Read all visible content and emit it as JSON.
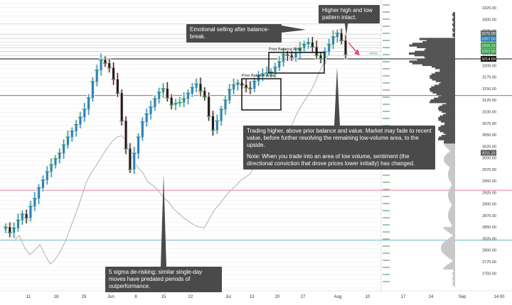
{
  "chart_data": {
    "type": "candlestick",
    "title": "",
    "xlabel": "",
    "ylabel": "",
    "ylim": [
      2712,
      3342
    ],
    "grid": true,
    "x_ticks": [
      "11",
      "18",
      "25",
      "Jun",
      "8",
      "15",
      "22",
      "Jul",
      "13",
      "20",
      "27",
      "Aug",
      "10",
      "17",
      "24",
      "Sep",
      "14:00"
    ],
    "y_ticks": [
      2750,
      2775,
      2800,
      2825,
      2850,
      2875,
      2900,
      2925,
      2950,
      2975,
      3000,
      3025,
      3050,
      3075,
      3100,
      3125,
      3150,
      3175,
      3200,
      3225,
      3250,
      3275,
      3300,
      3325
    ],
    "price_tags": [
      {
        "label": "3270.00",
        "value": 3270,
        "color": "#666666"
      },
      {
        "label": "3267.50",
        "value": 3258,
        "color": "#2a7ab0"
      },
      {
        "label": "3269.25",
        "value": 3244,
        "color": "#2e9e44"
      },
      {
        "label": "3263.50",
        "value": 3231,
        "color": "#2e9e44"
      },
      {
        "label": "3214.50",
        "value": 3214.5,
        "color": "#111111"
      },
      {
        "label": "3011.25",
        "value": 3011,
        "color": "#555555"
      }
    ],
    "horizontal_levels": [
      {
        "value": 3214.5,
        "color": "#111111"
      },
      {
        "value": 3135,
        "color": "#8b2c63"
      },
      {
        "value": 2930,
        "color": "#e05070"
      },
      {
        "value": 2822,
        "color": "#5ab0c8"
      }
    ],
    "series": [
      {
        "name": "",
        "values": [
          2850,
          2838,
          2848,
          2865,
          2878,
          2870,
          2895,
          2912,
          2935,
          2952,
          2970,
          2985,
          2998,
          3010,
          3028,
          3045,
          3058,
          3072,
          3088,
          3105,
          3130,
          3165,
          3190,
          3212,
          3205,
          3195,
          3170,
          3140,
          3080,
          3020,
          2975,
          3010,
          3045,
          3078,
          3095,
          3110,
          3128,
          3142,
          3150,
          3130,
          3115,
          3118,
          3120,
          3128,
          3140,
          3152,
          3160,
          3145,
          3132,
          3090,
          3060,
          3080,
          3105,
          3125,
          3148,
          3158,
          3162,
          3158,
          3152,
          3150,
          3166,
          3178,
          3182,
          3184,
          3186,
          3196,
          3208,
          3224,
          3222,
          3218,
          3228,
          3238,
          3246,
          3250,
          3240,
          3222,
          3215,
          3230,
          3246,
          3262,
          3270,
          3254,
          3224
        ]
      }
    ],
    "vwap_values": [
      2820,
      2832,
      2806,
      2790,
      2800,
      2812,
      2790,
      2770,
      2780,
      2798,
      2820,
      2850,
      2880,
      2912,
      2946,
      2968,
      2984,
      3002,
      3020,
      3035,
      3045,
      3048,
      3030,
      3000,
      2980,
      2968,
      2948,
      2940,
      2930,
      2915,
      2905,
      2890,
      2880,
      2870,
      2862,
      2855,
      2850,
      2848,
      2868,
      2888,
      2900,
      2915,
      2928,
      2938,
      2950,
      2958,
      2966,
      2985,
      3000,
      3010,
      3016,
      3012,
      3020,
      3040,
      3070,
      3095,
      3115,
      3132,
      3150,
      3175,
      3200,
      3220,
      3250,
      3274
    ]
  },
  "annotations": {
    "higher_high": "Higher high and low pattern intact.",
    "emotional": "Emotional selling after balance-break.",
    "prior_balance_upper": "Prior Balance Area",
    "prior_balance_lower": "Prior Balance Area",
    "vpoc": "VPOC",
    "trading_higher_1": "Trading higher, above prior balance and value. Market may fade to recent value, before further resolving the remaining low-volume area, to the upside.",
    "trading_higher_2": "Note: When you trade into an area of low volume, sentiment (the directional conviction that drove prices lower initially) has changed.",
    "five_sigma": "5 sigma de-risking; similar single-day moves have predated periods of outperformance."
  },
  "colors": {
    "up_bar": "#2e7fc0",
    "down_bar": "#1a1a1a",
    "dev_green": "#2e9e44",
    "callout": "#4a4a4a",
    "profile": "#555555",
    "vwap": "#b0b0b0",
    "arrow": "#e05070"
  }
}
